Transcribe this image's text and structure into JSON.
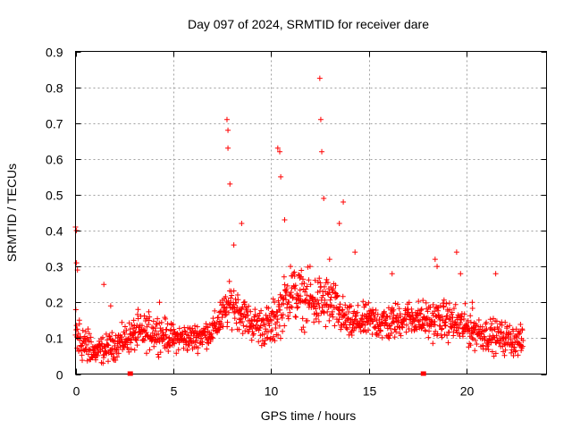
{
  "chart_data": {
    "type": "scatter",
    "title": "Day 097 of 2024, SRMTID for receiver dare",
    "xlabel": "GPS time / hours",
    "ylabel": "SRMTID / TECUs",
    "xlim": [
      0,
      24.1
    ],
    "ylim": [
      0,
      0.9
    ],
    "xticks": [
      0,
      5,
      10,
      15,
      20
    ],
    "yticks": [
      0,
      0.1,
      0.2,
      0.3,
      0.4,
      0.5,
      0.6,
      0.7,
      0.8,
      0.9
    ],
    "xtick_labels": [
      "0",
      "5",
      "10",
      "15",
      "20"
    ],
    "ytick_labels": [
      "0",
      "0.1",
      "0.2",
      "0.3",
      "0.4",
      "0.5",
      "0.6",
      "0.7",
      "0.8",
      "0.9"
    ],
    "grid": true,
    "series": [
      {
        "name": "SRMTID",
        "marker": "plus",
        "color": "#ff0000",
        "x_range": [
          0,
          22.9
        ],
        "sample_points": [
          [
            0.0,
            0.41
          ],
          [
            0.05,
            0.4
          ],
          [
            0.05,
            0.31
          ],
          [
            0.1,
            0.29
          ],
          [
            0.2,
            0.14
          ],
          [
            0.5,
            0.07
          ],
          [
            1.0,
            0.06
          ],
          [
            1.45,
            0.25
          ],
          [
            1.8,
            0.19
          ],
          [
            2.5,
            0.09
          ],
          [
            3.2,
            0.18
          ],
          [
            4.3,
            0.2
          ],
          [
            5.2,
            0.1
          ],
          [
            6.5,
            0.09
          ],
          [
            7.4,
            0.2
          ],
          [
            7.75,
            0.71
          ],
          [
            7.8,
            0.68
          ],
          [
            7.8,
            0.63
          ],
          [
            7.9,
            0.53
          ],
          [
            8.1,
            0.36
          ],
          [
            8.5,
            0.42
          ],
          [
            9.0,
            0.15
          ],
          [
            9.8,
            0.1
          ],
          [
            10.35,
            0.63
          ],
          [
            10.45,
            0.62
          ],
          [
            10.5,
            0.55
          ],
          [
            10.7,
            0.43
          ],
          [
            11.0,
            0.3
          ],
          [
            11.5,
            0.2
          ],
          [
            12.0,
            0.3
          ],
          [
            12.5,
            0.825
          ],
          [
            12.55,
            0.71
          ],
          [
            12.6,
            0.62
          ],
          [
            12.7,
            0.49
          ],
          [
            13.0,
            0.32
          ],
          [
            13.5,
            0.42
          ],
          [
            13.7,
            0.48
          ],
          [
            14.3,
            0.34
          ],
          [
            15.0,
            0.15
          ],
          [
            16.2,
            0.28
          ],
          [
            17.5,
            0.15
          ],
          [
            18.4,
            0.32
          ],
          [
            18.5,
            0.3
          ],
          [
            19.5,
            0.34
          ],
          [
            19.7,
            0.28
          ],
          [
            20.3,
            0.2
          ],
          [
            20.8,
            0.12
          ],
          [
            21.5,
            0.28
          ],
          [
            22.0,
            0.1
          ],
          [
            22.8,
            0.08
          ]
        ],
        "envelope": [
          [
            0,
            0.1,
            0.13
          ],
          [
            1,
            0.06,
            0.05
          ],
          [
            2,
            0.08,
            0.05
          ],
          [
            3,
            0.11,
            0.06
          ],
          [
            4,
            0.12,
            0.07
          ],
          [
            5,
            0.1,
            0.05
          ],
          [
            6,
            0.1,
            0.05
          ],
          [
            7,
            0.12,
            0.05
          ],
          [
            8,
            0.2,
            0.08
          ],
          [
            9,
            0.14,
            0.06
          ],
          [
            10,
            0.13,
            0.08
          ],
          [
            11,
            0.23,
            0.1
          ],
          [
            12,
            0.2,
            0.1
          ],
          [
            13,
            0.2,
            0.1
          ],
          [
            14,
            0.14,
            0.06
          ],
          [
            15,
            0.15,
            0.06
          ],
          [
            16,
            0.14,
            0.07
          ],
          [
            17,
            0.16,
            0.06
          ],
          [
            18,
            0.15,
            0.07
          ],
          [
            19,
            0.15,
            0.07
          ],
          [
            20,
            0.13,
            0.07
          ],
          [
            21,
            0.11,
            0.06
          ],
          [
            22,
            0.1,
            0.06
          ],
          [
            22.9,
            0.09,
            0.05
          ]
        ]
      }
    ],
    "axis_markers": [
      2.8,
      17.8
    ]
  }
}
